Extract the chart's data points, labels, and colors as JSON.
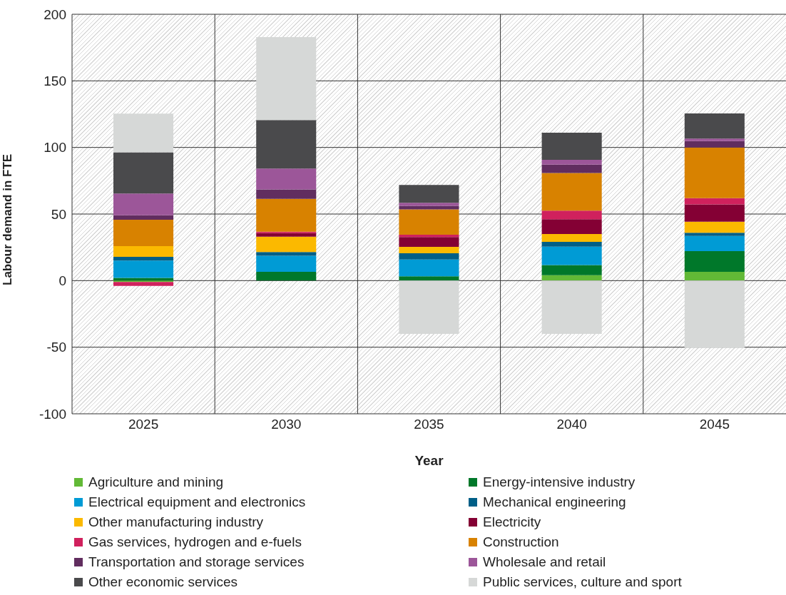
{
  "chart_data": {
    "type": "bar",
    "stacked": true,
    "xlabel": "Year",
    "ylabel": "Labour demand in FTE",
    "categories": [
      "2025",
      "2030",
      "2035",
      "2040",
      "2045"
    ],
    "series": [
      {
        "name": "Agriculture and mining",
        "color": "#62b936",
        "values": [
          -1,
          0,
          0,
          4,
          6.6
        ]
      },
      {
        "name": "Energy-intensive industry",
        "color": "#00782a",
        "values": [
          2,
          6.6,
          3.2,
          7.7,
          15.5
        ]
      },
      {
        "name": "Electrical equipment and electronics",
        "color": "#009bd5",
        "values": [
          13,
          12,
          12.6,
          13.8,
          11.4
        ]
      },
      {
        "name": "Mechanical engineering",
        "color": "#005f87",
        "values": [
          2.8,
          2.9,
          4.7,
          3.6,
          2.4
        ]
      },
      {
        "name": "Other manufacturing industry",
        "color": "#fbb900",
        "values": [
          8.1,
          11.5,
          4.8,
          5.9,
          8.4
        ]
      },
      {
        "name": "Electricity",
        "color": "#840034",
        "values": [
          0,
          2.7,
          7.4,
          11.1,
          12.9
        ]
      },
      {
        "name": "Gas services, hydrogen and e-fuels",
        "color": "#d0215d",
        "values": [
          -3,
          1.1,
          1.8,
          6.5,
          4.7
        ]
      },
      {
        "name": "Construction",
        "color": "#d88200",
        "values": [
          19.8,
          24.6,
          19,
          28.2,
          38
        ]
      },
      {
        "name": "Transportation and storage services",
        "color": "#612d5f",
        "values": [
          3.4,
          7.1,
          2.7,
          6.3,
          4.9
        ]
      },
      {
        "name": "Wholesale and retail",
        "color": "#9c5699",
        "values": [
          16.3,
          15.7,
          2.3,
          3.6,
          1.8
        ]
      },
      {
        "name": "Other economic services",
        "color": "#4a4a4c",
        "values": [
          31,
          36.4,
          13.3,
          20.4,
          19
        ]
      },
      {
        "name": "Public services, culture and sport",
        "color": "#d6d8d7",
        "values": [
          29,
          62.3,
          -40,
          -40,
          -50.5
        ]
      }
    ],
    "ylim": [
      -100,
      200
    ],
    "yticks": [
      -100,
      -50,
      0,
      50,
      100,
      150,
      200
    ],
    "grid": true,
    "legend": "bottom"
  }
}
